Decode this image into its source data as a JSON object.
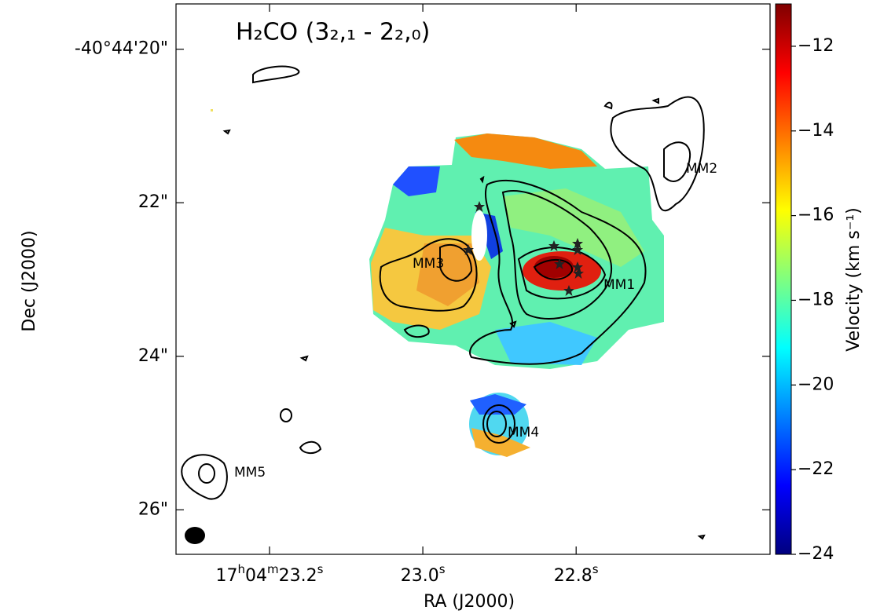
{
  "chart_data": {
    "type": "image",
    "title": "H₂CO (3₂,₁ - 2₂,₀)",
    "xlabel": "RA (J2000)",
    "ylabel": "Dec (J2000)",
    "xlim": [
      23.322,
      22.547
    ],
    "xticks": [
      {
        "value": 23.2,
        "label": "17h04m23.2s"
      },
      {
        "value": 23.0,
        "label": "23.0s"
      },
      {
        "value": 22.8,
        "label": "22.8s"
      }
    ],
    "ylim": [
      26.58,
      19.41
    ],
    "yticks": [
      {
        "value": 20,
        "label": "-40°44'20\""
      },
      {
        "value": 22,
        "label": "22\""
      },
      {
        "value": 24,
        "label": "24\""
      },
      {
        "value": 26,
        "label": "26\""
      }
    ],
    "colorbar": {
      "label": "Velocity (km s⁻¹)",
      "colormap": "jet",
      "lim": [
        -24,
        -11
      ],
      "ticks": [
        {
          "value": -12,
          "label": "−12"
        },
        {
          "value": -14,
          "label": "−14"
        },
        {
          "value": -16,
          "label": "−16"
        },
        {
          "value": -18,
          "label": "−18"
        },
        {
          "value": -20,
          "label": "−20"
        },
        {
          "value": -22,
          "label": "−22"
        },
        {
          "value": -24,
          "label": "−24"
        }
      ]
    },
    "annotations": [
      "MM1",
      "MM2",
      "MM3",
      "MM4",
      "MM5"
    ]
  }
}
